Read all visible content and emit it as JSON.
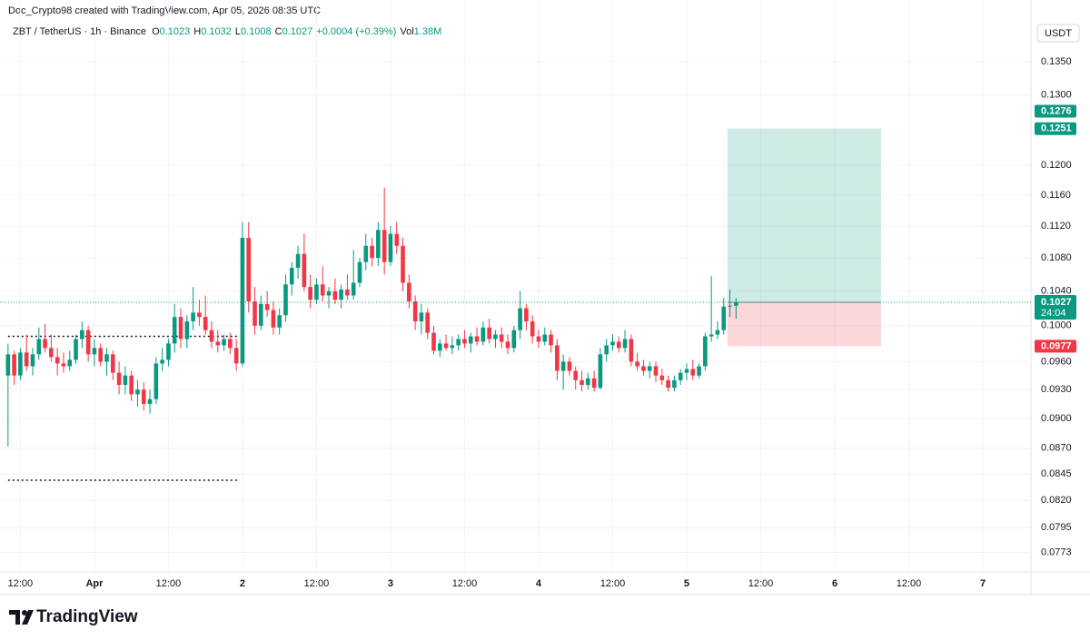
{
  "caption": "Doc_Crypto98 created with TradingView.com, Apr 05, 2026 08:35 UTC",
  "brand": "TradingView",
  "chart_data": {
    "type": "candlestick",
    "symbol": "ZBT / TetherUS · 1h · Binance",
    "ohlc_labels": [
      "O",
      "H",
      "L",
      "C"
    ],
    "change": "+0.0004 (+0.39%)",
    "volume_label": "Vol",
    "volume": "1.38M",
    "currency": "USDT",
    "up_color": "#089981",
    "down_color": "#f23645",
    "yscale": "log",
    "grid": true,
    "ylim": [
      0.0756,
      0.1411
    ],
    "yticks": [
      {
        "value": 0.135,
        "label": "0.1350"
      },
      {
        "value": 0.13,
        "label": "0.1300"
      },
      {
        "value": 0.12,
        "label": "0.1200"
      },
      {
        "value": 0.116,
        "label": "0.1160"
      },
      {
        "value": 0.112,
        "label": "0.1120"
      },
      {
        "value": 0.108,
        "label": "0.1080"
      },
      {
        "value": 0.104,
        "label": "0.1040"
      },
      {
        "value": 0.1,
        "label": "0.1000"
      },
      {
        "value": 0.096,
        "label": "0.0960"
      },
      {
        "value": 0.093,
        "label": "0.0930"
      },
      {
        "value": 0.09,
        "label": "0.0900"
      },
      {
        "value": 0.087,
        "label": "0.0870"
      },
      0.0845,
      {
        "value": 0.082,
        "label": "0.0820"
      },
      0.0795,
      0.0773
    ],
    "xlim": [
      -1.3,
      165.8
    ],
    "xticks": [
      {
        "value": 2,
        "label": "12:00"
      },
      {
        "value": 14,
        "label": "Apr"
      },
      {
        "value": 26,
        "label": "12:00"
      },
      {
        "value": 38,
        "label": "2"
      },
      {
        "value": 50,
        "label": "12:00"
      },
      {
        "value": 62,
        "label": "3"
      },
      {
        "value": 74,
        "label": "12:00"
      },
      {
        "value": 86,
        "label": "4"
      },
      {
        "value": 98,
        "label": "12:00"
      },
      {
        "value": 110,
        "label": "5"
      },
      {
        "value": 122,
        "label": "12:00"
      },
      {
        "value": 134,
        "label": "6"
      },
      {
        "value": 146,
        "label": "12:00"
      },
      {
        "value": 158,
        "label": "7"
      }
    ],
    "open": [
      0.0945,
      0.0968,
      0.0945,
      0.097,
      0.0955,
      0.0968,
      0.0985,
      0.0975,
      0.0965,
      0.0958,
      0.0955,
      0.0962,
      0.0985,
      0.0995,
      0.0968,
      0.0975,
      0.096,
      0.0968,
      0.0948,
      0.0935,
      0.0945,
      0.0925,
      0.093,
      0.0915,
      0.092,
      0.0958,
      0.0962,
      0.098,
      0.101,
      0.0985,
      0.1005,
      0.1015,
      0.101,
      0.0995,
      0.0982,
      0.0978,
      0.0985,
      0.0975,
      0.0958,
      0.1105,
      0.1028,
      0.1,
      0.1025,
      0.1018,
      0.0998,
      0.1012,
      0.1048,
      0.1068,
      0.1085,
      0.1045,
      0.103,
      0.1048,
      0.1035,
      0.104,
      0.103,
      0.1042,
      0.1035,
      0.105,
      0.1075,
      0.1095,
      0.108,
      0.1115,
      0.1075,
      0.111,
      0.1095,
      0.105,
      0.1028,
      0.1005,
      0.1015,
      0.0992,
      0.0972,
      0.098,
      0.0975,
      0.0978,
      0.0985,
      0.098,
      0.0988,
      0.0982,
      0.0998,
      0.0985,
      0.099,
      0.0982,
      0.0975,
      0.0995,
      0.102,
      0.1005,
      0.0988,
      0.0982,
      0.099,
      0.0978,
      0.095,
      0.096,
      0.095,
      0.094,
      0.0935,
      0.0942,
      0.0932,
      0.0968,
      0.0978,
      0.0982,
      0.0975,
      0.0985,
      0.096,
      0.0955,
      0.095,
      0.0955,
      0.0945,
      0.094,
      0.0932,
      0.094,
      0.0948,
      0.0952,
      0.0945,
      0.0955,
      0.0988,
      0.099,
      0.0995,
      0.1022,
      0.1023
    ],
    "high": [
      0.098,
      0.0972,
      0.0975,
      0.099,
      0.0975,
      0.0998,
      0.1002,
      0.099,
      0.0975,
      0.097,
      0.0972,
      0.099,
      0.1005,
      0.1,
      0.0985,
      0.098,
      0.0975,
      0.0972,
      0.096,
      0.0955,
      0.095,
      0.094,
      0.0938,
      0.093,
      0.0965,
      0.0975,
      0.0985,
      0.1025,
      0.102,
      0.1012,
      0.1045,
      0.103,
      0.1035,
      0.1005,
      0.0995,
      0.099,
      0.0992,
      0.0985,
      0.1125,
      0.1125,
      0.1045,
      0.1035,
      0.104,
      0.1028,
      0.102,
      0.106,
      0.1075,
      0.1095,
      0.111,
      0.106,
      0.1055,
      0.107,
      0.1045,
      0.1055,
      0.1048,
      0.106,
      0.109,
      0.108,
      0.111,
      0.1105,
      0.1125,
      0.117,
      0.112,
      0.1125,
      0.1105,
      0.106,
      0.1035,
      0.1025,
      0.102,
      0.1,
      0.0985,
      0.099,
      0.0988,
      0.099,
      0.0995,
      0.0992,
      0.0998,
      0.1005,
      0.1008,
      0.0995,
      0.0998,
      0.099,
      0.1,
      0.104,
      0.1025,
      0.1012,
      0.0995,
      0.0998,
      0.0995,
      0.0985,
      0.0968,
      0.0965,
      0.0955,
      0.095,
      0.0948,
      0.095,
      0.0975,
      0.0985,
      0.099,
      0.0988,
      0.0995,
      0.099,
      0.097,
      0.0962,
      0.096,
      0.096,
      0.0952,
      0.0945,
      0.0945,
      0.0952,
      0.0958,
      0.0962,
      0.0958,
      0.0992,
      0.1058,
      0.1005,
      0.1032,
      0.1042,
      0.1032
    ],
    "low": [
      0.0872,
      0.0935,
      0.094,
      0.095,
      0.0945,
      0.0962,
      0.097,
      0.096,
      0.0945,
      0.0948,
      0.095,
      0.0958,
      0.0975,
      0.096,
      0.0955,
      0.0955,
      0.0945,
      0.094,
      0.0925,
      0.0925,
      0.0918,
      0.0912,
      0.0908,
      0.0905,
      0.0915,
      0.095,
      0.0955,
      0.097,
      0.0975,
      0.0975,
      0.0995,
      0.1,
      0.099,
      0.0975,
      0.097,
      0.0972,
      0.0968,
      0.095,
      0.0955,
      0.1015,
      0.099,
      0.0995,
      0.101,
      0.099,
      0.099,
      0.1005,
      0.1035,
      0.1055,
      0.104,
      0.102,
      0.1025,
      0.1028,
      0.102,
      0.1025,
      0.102,
      0.103,
      0.103,
      0.1045,
      0.1065,
      0.107,
      0.107,
      0.106,
      0.107,
      0.1085,
      0.104,
      0.102,
      0.0995,
      0.099,
      0.0985,
      0.0968,
      0.0965,
      0.0972,
      0.0968,
      0.0972,
      0.0975,
      0.097,
      0.0978,
      0.0978,
      0.098,
      0.0975,
      0.0975,
      0.0968,
      0.097,
      0.0985,
      0.0995,
      0.098,
      0.0975,
      0.0978,
      0.097,
      0.094,
      0.093,
      0.0945,
      0.093,
      0.0928,
      0.093,
      0.0928,
      0.093,
      0.096,
      0.0972,
      0.097,
      0.097,
      0.0955,
      0.095,
      0.0945,
      0.0942,
      0.0938,
      0.0935,
      0.0928,
      0.0928,
      0.0935,
      0.094,
      0.094,
      0.0942,
      0.095,
      0.0982,
      0.0985,
      0.099,
      0.101,
      0.1008
    ],
    "close": [
      0.0968,
      0.0945,
      0.097,
      0.0955,
      0.0968,
      0.0985,
      0.0975,
      0.0965,
      0.0958,
      0.0955,
      0.0962,
      0.0985,
      0.0995,
      0.0968,
      0.0975,
      0.096,
      0.0968,
      0.0948,
      0.0935,
      0.0945,
      0.0925,
      0.093,
      0.0915,
      0.092,
      0.0958,
      0.0962,
      0.098,
      0.101,
      0.0985,
      0.1005,
      0.1015,
      0.101,
      0.0995,
      0.0982,
      0.0978,
      0.0985,
      0.0975,
      0.0958,
      0.1105,
      0.1028,
      0.1,
      0.1025,
      0.1018,
      0.0998,
      0.1012,
      0.1048,
      0.1068,
      0.1085,
      0.1045,
      0.103,
      0.1048,
      0.1035,
      0.104,
      0.103,
      0.1042,
      0.1035,
      0.105,
      0.1075,
      0.1095,
      0.108,
      0.1115,
      0.1075,
      0.111,
      0.1095,
      0.105,
      0.1028,
      0.1005,
      0.1015,
      0.0992,
      0.0972,
      0.098,
      0.0975,
      0.0978,
      0.0985,
      0.098,
      0.0988,
      0.0982,
      0.0998,
      0.0985,
      0.099,
      0.0982,
      0.0975,
      0.0995,
      0.102,
      0.1005,
      0.0988,
      0.0982,
      0.099,
      0.0978,
      0.095,
      0.096,
      0.095,
      0.094,
      0.0935,
      0.0942,
      0.0932,
      0.0968,
      0.0978,
      0.0982,
      0.0975,
      0.0985,
      0.096,
      0.0955,
      0.095,
      0.0955,
      0.0945,
      0.094,
      0.0932,
      0.094,
      0.0948,
      0.0952,
      0.0945,
      0.0955,
      0.0988,
      0.099,
      0.0995,
      0.1022,
      0.1023,
      0.1027
    ],
    "countdown": "24:04",
    "price_labels": [
      {
        "value": 0.1276,
        "color": "#089981"
      },
      {
        "value": 0.1251,
        "color": "#089981"
      },
      {
        "value": 0.0977,
        "color": "#f23645"
      }
    ],
    "position": {
      "entry": 0.1027,
      "target": 0.1251,
      "stop": 0.0977,
      "x_start": 116.6,
      "x_end": 141.5
    },
    "levels": [
      {
        "price": 0.0988,
        "x_start": 0,
        "x_end": 37.4
      },
      {
        "price": 0.0839,
        "x_start": 0,
        "x_end": 37.4
      }
    ]
  }
}
